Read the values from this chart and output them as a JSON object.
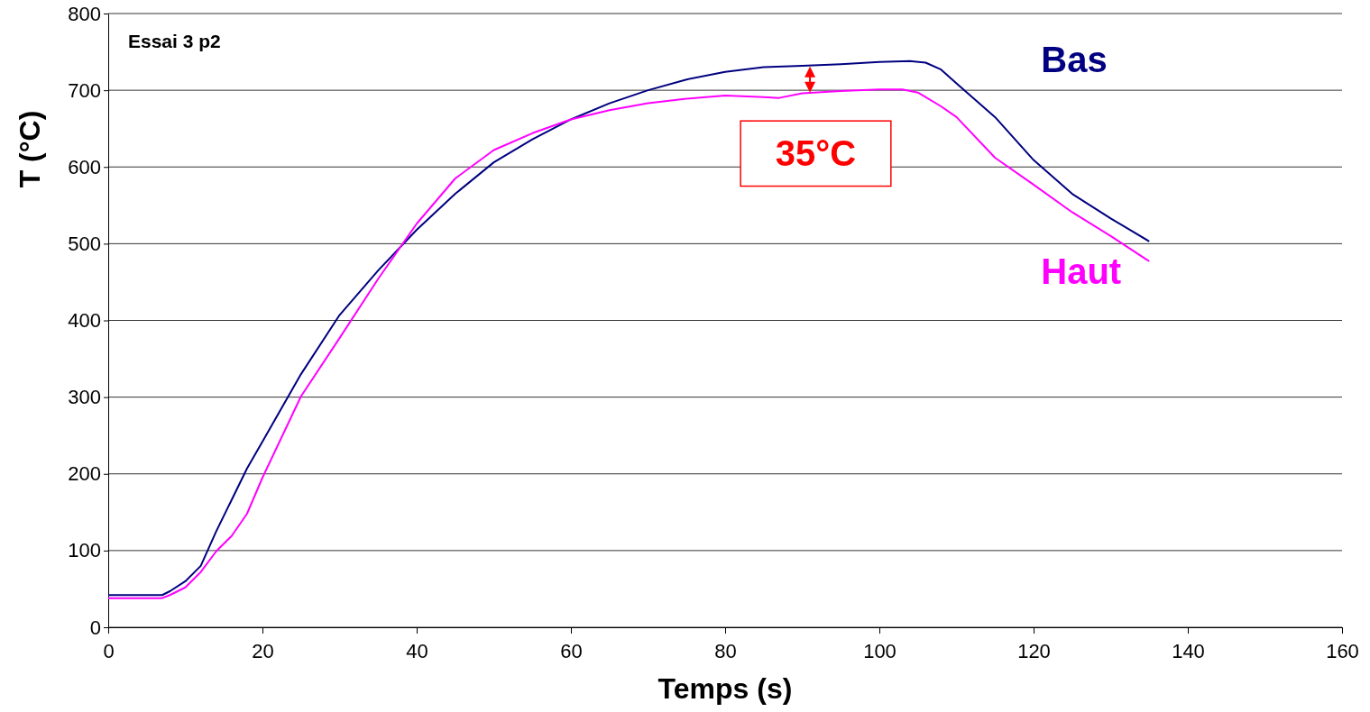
{
  "chart_data": {
    "type": "line",
    "xlabel": "Temps (s)",
    "ylabel": "T (°C)",
    "xlim": [
      0,
      160
    ],
    "xticks": [
      0,
      20,
      40,
      60,
      80,
      100,
      120,
      140,
      160
    ],
    "ylim": [
      0,
      800
    ],
    "yticks": [
      0,
      100,
      200,
      300,
      400,
      500,
      600,
      700,
      800
    ],
    "grid": "y",
    "marker": "none",
    "line_style": "solid",
    "annotations": [
      "Essai 3 p2",
      "35°C"
    ],
    "series": [
      {
        "name": "Bas",
        "color": "#000080",
        "x": [
          0,
          7,
          8,
          10,
          12,
          14,
          16,
          18,
          20,
          25,
          30,
          35,
          40,
          45,
          50,
          55,
          60,
          65,
          70,
          75,
          80,
          85,
          90,
          95,
          100,
          104,
          106,
          108,
          110,
          115,
          120,
          125,
          130,
          135
        ],
        "values": [
          42,
          42,
          47,
          60,
          80,
          125,
          166,
          207,
          242,
          330,
          407,
          465,
          518,
          565,
          606,
          636,
          662,
          683,
          700,
          714,
          724,
          730,
          732,
          734,
          737,
          738,
          736,
          727,
          709,
          665,
          609,
          565,
          533,
          503
        ]
      },
      {
        "name": "Haut",
        "color": "#ff00ff",
        "x": [
          0,
          7,
          8,
          10,
          12,
          14,
          16,
          18,
          20,
          25,
          30,
          35,
          40,
          45,
          50,
          55,
          60,
          65,
          70,
          75,
          80,
          85,
          87,
          90,
          95,
          100,
          103,
          105,
          108,
          110,
          115,
          120,
          125,
          130,
          135
        ],
        "values": [
          38,
          38,
          42,
          52,
          72,
          99,
          119,
          148,
          195,
          301,
          377,
          454,
          526,
          585,
          622,
          644,
          662,
          674,
          683,
          689,
          693,
          691,
          690,
          696,
          699,
          701,
          701,
          697,
          679,
          665,
          612,
          577,
          541,
          510,
          477
        ]
      }
    ]
  }
}
